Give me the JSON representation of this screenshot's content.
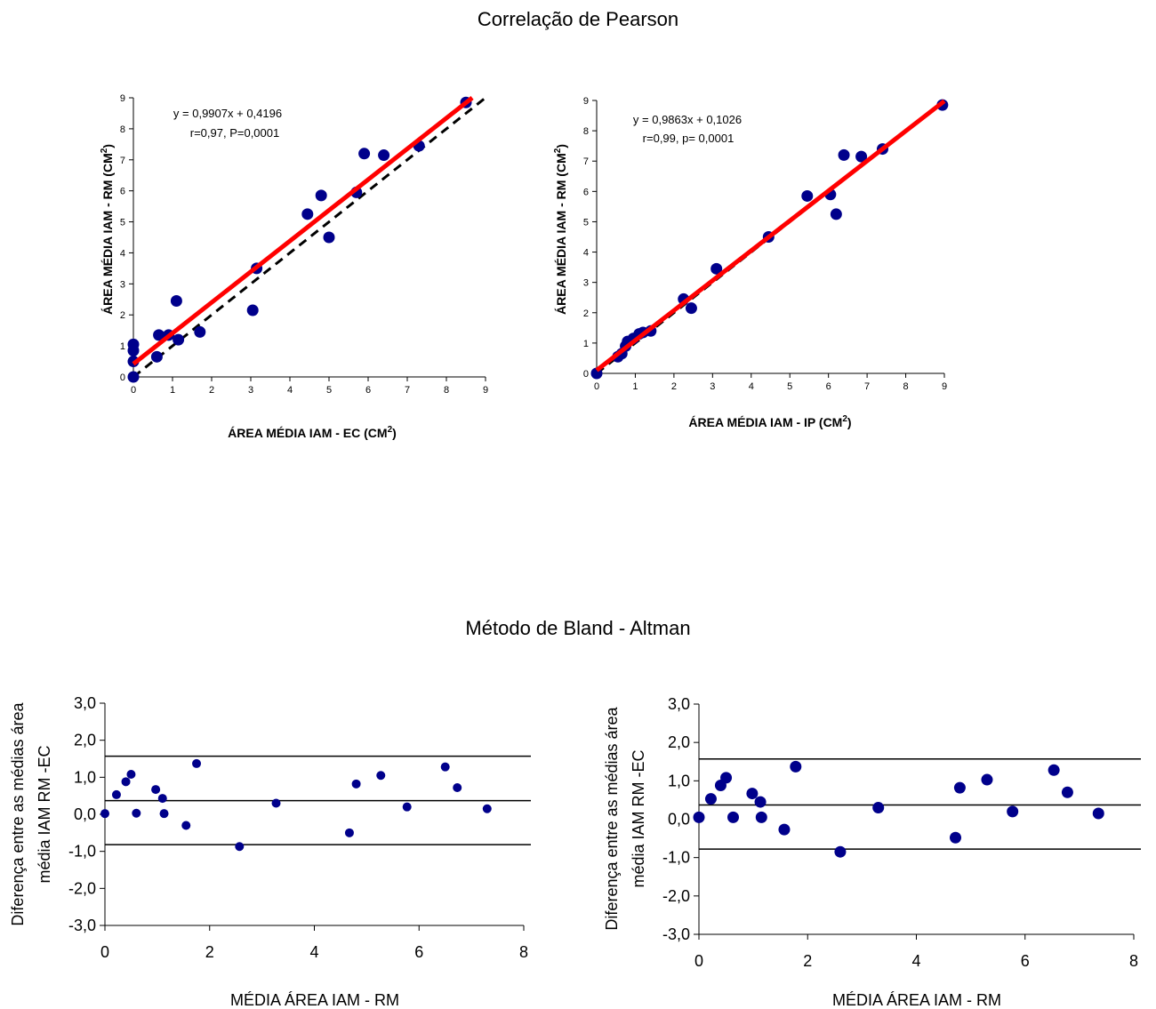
{
  "titles": {
    "correlation": "Correlação de Pearson",
    "bland_altman": "Método de Bland - Altman"
  },
  "chart_data": [
    {
      "type": "scatter",
      "xlabel": "ÁREA MÉDIA IAM  - EC (CM",
      "xlabel_sup": "2",
      "xlabel_end": ")",
      "ylabel": "ÁREA MÉDIA IAM - RM (CM",
      "ylabel_sup": "2",
      "ylabel_end": ")",
      "xlim": [
        0,
        9
      ],
      "ylim": [
        0,
        9
      ],
      "xticks": [
        0,
        1,
        2,
        3,
        4,
        5,
        6,
        7,
        8,
        9
      ],
      "yticks": [
        0,
        1,
        2,
        3,
        4,
        5,
        6,
        7,
        8,
        9
      ],
      "equation": "y = 0,9907x + 0,4196",
      "stats": "r=0,97,  P=0,0001",
      "regression": {
        "slope": 0.9907,
        "intercept": 0.4196,
        "color": "#ff0000"
      },
      "identity_line": {
        "slope": 1,
        "intercept": 0,
        "style": "dashed"
      },
      "point_color": "#00008b",
      "points": [
        [
          0,
          0
        ],
        [
          0,
          0.5
        ],
        [
          0,
          0.85
        ],
        [
          0,
          1.05
        ],
        [
          0.6,
          0.65
        ],
        [
          0.65,
          1.35
        ],
        [
          0.9,
          1.35
        ],
        [
          1.1,
          2.45
        ],
        [
          1.15,
          1.2
        ],
        [
          1.7,
          1.45
        ],
        [
          3.05,
          2.15
        ],
        [
          3.15,
          3.5
        ],
        [
          4.45,
          5.25
        ],
        [
          4.8,
          5.85
        ],
        [
          5.0,
          4.5
        ],
        [
          5.7,
          5.95
        ],
        [
          5.9,
          7.2
        ],
        [
          6.4,
          7.15
        ],
        [
          7.3,
          7.45
        ],
        [
          8.5,
          8.85
        ]
      ]
    },
    {
      "type": "scatter",
      "xlabel": "ÁREA MÉDIA IAM - IP (CM",
      "xlabel_sup": "2",
      "xlabel_end": ")",
      "ylabel": "ÁREA MÉDIA IAM -  RM (CM",
      "ylabel_sup": "2",
      "ylabel_end": ")",
      "xlim": [
        0,
        9
      ],
      "ylim": [
        0,
        9
      ],
      "xticks": [
        0,
        1,
        2,
        3,
        4,
        5,
        6,
        7,
        8,
        9
      ],
      "yticks": [
        0,
        1,
        2,
        3,
        4,
        5,
        6,
        7,
        8,
        9
      ],
      "equation": "y = 0,9863x + 0,1026",
      "stats": "r=0,99,  p= 0,0001",
      "regression": {
        "slope": 0.9863,
        "intercept": 0.1026,
        "color": "#ff0000"
      },
      "identity_line": {
        "slope": 1,
        "intercept": 0,
        "style": "dashed"
      },
      "point_color": "#00008b",
      "points": [
        [
          0,
          0
        ],
        [
          0.55,
          0.55
        ],
        [
          0.65,
          0.65
        ],
        [
          0.75,
          0.9
        ],
        [
          0.8,
          1.05
        ],
        [
          0.95,
          1.15
        ],
        [
          1.1,
          1.3
        ],
        [
          1.2,
          1.35
        ],
        [
          1.4,
          1.4
        ],
        [
          2.25,
          2.45
        ],
        [
          2.45,
          2.15
        ],
        [
          3.1,
          3.45
        ],
        [
          4.45,
          4.5
        ],
        [
          5.45,
          5.85
        ],
        [
          6.05,
          5.9
        ],
        [
          6.2,
          5.25
        ],
        [
          6.4,
          7.2
        ],
        [
          6.85,
          7.15
        ],
        [
          7.4,
          7.4
        ],
        [
          8.95,
          8.85
        ]
      ]
    },
    {
      "type": "scatter",
      "xlabel": "MÉDIA ÁREA IAM - RM",
      "ylabel_line1": "Diferença entre as médias área",
      "ylabel_line2": "média IAM RM -EC",
      "xlim": [
        0,
        8
      ],
      "ylim": [
        -3,
        3
      ],
      "xticks": [
        "0",
        "2",
        "4",
        "6",
        "8"
      ],
      "xtick_values": [
        0,
        2,
        4,
        6,
        8
      ],
      "yticks": [
        "3,0",
        "2,0",
        "1,0",
        "0,0",
        "-1,0",
        "-2,0",
        "-3,0"
      ],
      "ytick_values": [
        3,
        2,
        1,
        0,
        -1,
        -2,
        -3
      ],
      "hlines": [
        1.57,
        0.37,
        -0.82
      ],
      "point_color": "#00008b",
      "point_radius": 5,
      "points": [
        [
          0,
          0.02
        ],
        [
          0.22,
          0.53
        ],
        [
          0.4,
          0.88
        ],
        [
          0.5,
          1.08
        ],
        [
          0.6,
          0.03
        ],
        [
          0.97,
          0.67
        ],
        [
          1.1,
          0.43
        ],
        [
          1.13,
          0.02
        ],
        [
          1.55,
          -0.3
        ],
        [
          1.75,
          1.37
        ],
        [
          2.57,
          -0.87
        ],
        [
          3.27,
          0.3
        ],
        [
          4.67,
          -0.5
        ],
        [
          4.8,
          0.82
        ],
        [
          5.27,
          1.05
        ],
        [
          5.77,
          0.2
        ],
        [
          6.5,
          1.28
        ],
        [
          6.73,
          0.72
        ],
        [
          7.3,
          0.15
        ]
      ]
    },
    {
      "type": "scatter",
      "xlabel": "MÉDIA ÁREA IAM - RM",
      "ylabel_line1": "Diferença entre as médias área",
      "ylabel_line2": "média IAM RM -EC",
      "xlim": [
        0,
        8
      ],
      "ylim": [
        -3,
        3
      ],
      "xticks": [
        "0",
        "2",
        "4",
        "6",
        "8"
      ],
      "xtick_values": [
        0,
        2,
        4,
        6,
        8
      ],
      "yticks": [
        "3,0",
        "2,0",
        "1,0",
        "0,0",
        "-1,0",
        "-2,0",
        "-3,0"
      ],
      "ytick_values": [
        3,
        2,
        1,
        0,
        -1,
        -2,
        -3
      ],
      "hlines": [
        1.57,
        0.37,
        -0.78
      ],
      "point_color": "#00008b",
      "point_radius": 6.5,
      "points": [
        [
          0,
          0.05
        ],
        [
          0.22,
          0.53
        ],
        [
          0.4,
          0.88
        ],
        [
          0.5,
          1.08
        ],
        [
          0.63,
          0.05
        ],
        [
          0.98,
          0.67
        ],
        [
          1.13,
          0.45
        ],
        [
          1.15,
          0.05
        ],
        [
          1.57,
          -0.27
        ],
        [
          1.78,
          1.37
        ],
        [
          2.6,
          -0.85
        ],
        [
          3.3,
          0.3
        ],
        [
          4.72,
          -0.48
        ],
        [
          4.8,
          0.82
        ],
        [
          5.3,
          1.03
        ],
        [
          5.77,
          0.2
        ],
        [
          6.53,
          1.28
        ],
        [
          6.78,
          0.7
        ],
        [
          7.35,
          0.15
        ]
      ]
    }
  ]
}
